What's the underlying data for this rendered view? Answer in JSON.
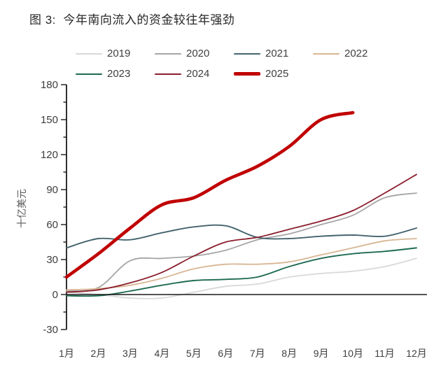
{
  "figure": {
    "title": "图 3:  今年南向流入的资金较往年强劲"
  },
  "chart_data": {
    "type": "line",
    "title": "图 3: 今年南向流入的资金较往年强劲",
    "xlabel": "",
    "ylabel": "十亿美元",
    "categories": [
      "1月",
      "2月",
      "3月",
      "4月",
      "5月",
      "6月",
      "7月",
      "8月",
      "9月",
      "10月",
      "11月",
      "12月"
    ],
    "ylim": [
      -30,
      180
    ],
    "ytick_step": 30,
    "yticks": [
      180,
      150,
      120,
      90,
      60,
      30,
      0,
      -30
    ],
    "grid": false,
    "zero_line": true,
    "legend_position": "top",
    "axis_color": "#1a1a1a",
    "tick_label_color": "#3d3d3d",
    "series": [
      {
        "name": "2019",
        "color": "#d9d9d9",
        "width": 1.8,
        "values": [
          2,
          0,
          -3,
          -3,
          2,
          7,
          9,
          15,
          18,
          20,
          24,
          31
        ]
      },
      {
        "name": "2020",
        "color": "#a6a6a6",
        "width": 1.8,
        "values": [
          3,
          6,
          29,
          31,
          33,
          38,
          47,
          52,
          60,
          68,
          83,
          87
        ]
      },
      {
        "name": "2021",
        "color": "#44646e",
        "width": 1.9,
        "values": [
          40,
          48,
          47,
          53,
          58,
          59,
          49,
          48,
          50,
          51,
          50,
          57
        ]
      },
      {
        "name": "2022",
        "color": "#d8b693",
        "width": 1.8,
        "values": [
          4,
          5,
          8,
          14,
          22,
          26,
          26,
          28,
          34,
          40,
          46,
          48
        ]
      },
      {
        "name": "2023",
        "color": "#1e6b52",
        "width": 1.9,
        "values": [
          -1,
          -1,
          3,
          8,
          12,
          13,
          15,
          24,
          31,
          35,
          37,
          40
        ]
      },
      {
        "name": "2024",
        "color": "#8b1e2d",
        "width": 1.8,
        "values": [
          2,
          4,
          10,
          19,
          33,
          45,
          49,
          56,
          63,
          72,
          87,
          103
        ]
      },
      {
        "name": "2025",
        "color": "#c00000",
        "width": 4.6,
        "values": [
          15,
          35,
          57,
          77,
          83,
          98,
          110,
          127,
          150,
          156
        ]
      }
    ]
  }
}
